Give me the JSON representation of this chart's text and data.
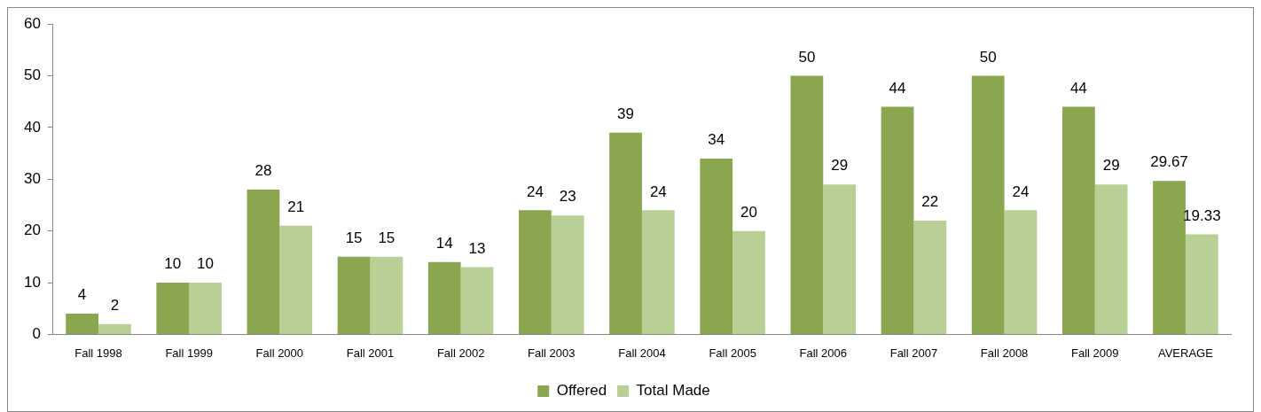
{
  "chart_data": {
    "type": "bar",
    "categories": [
      "Fall 1998",
      "Fall 1999",
      "Fall 2000",
      "Fall 2001",
      "Fall 2002",
      "Fall 2003",
      "Fall 2004",
      "Fall 2005",
      "Fall 2006",
      "Fall 2007",
      "Fall 2008",
      "Fall 2009",
      "AVERAGE"
    ],
    "series": [
      {
        "name": "Offered",
        "color": "#8aa64e",
        "values": [
          4,
          10,
          28,
          15,
          14,
          24,
          39,
          34,
          50,
          44,
          50,
          44,
          29.67
        ]
      },
      {
        "name": "Total Made",
        "color": "#b8cf96",
        "values": [
          2,
          10,
          21,
          15,
          13,
          23,
          24,
          20,
          29,
          22,
          24,
          29,
          19.33
        ]
      }
    ],
    "ylim": [
      0,
      60
    ],
    "yticks": [
      0,
      10,
      20,
      30,
      40,
      50,
      60
    ],
    "grid": false,
    "legend": "bottom",
    "data_labels": true
  }
}
